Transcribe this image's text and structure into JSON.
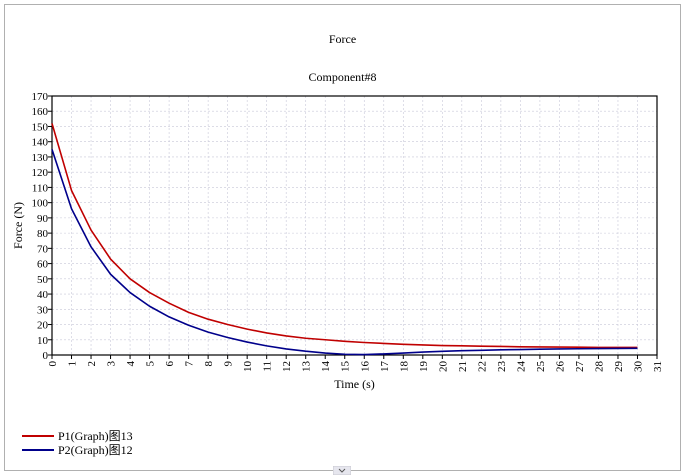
{
  "window": {
    "title": "Force",
    "subtitle": "Component#8"
  },
  "chart_data": {
    "type": "line",
    "title": "Force",
    "subtitle": "Component#8",
    "xlabel": "Time (s)",
    "ylabel": "Force (N)",
    "xlim": [
      0,
      31
    ],
    "ylim": [
      0,
      170
    ],
    "xticks": [
      0,
      1,
      2,
      3,
      4,
      5,
      6,
      7,
      8,
      9,
      10,
      11,
      12,
      13,
      14,
      15,
      16,
      17,
      18,
      19,
      20,
      21,
      22,
      23,
      24,
      25,
      26,
      27,
      28,
      29,
      30,
      31
    ],
    "yticks": [
      0,
      10,
      20,
      30,
      40,
      50,
      60,
      70,
      80,
      90,
      100,
      110,
      120,
      130,
      140,
      150,
      160,
      170
    ],
    "grid": true,
    "legend_position": "bottom-left",
    "x": [
      0,
      1,
      2,
      3,
      4,
      5,
      6,
      7,
      8,
      9,
      10,
      11,
      12,
      13,
      14,
      15,
      16,
      17,
      18,
      19,
      20,
      21,
      22,
      23,
      24,
      25,
      26,
      27,
      28,
      29,
      30
    ],
    "series": [
      {
        "name": "P1(Graph)图13",
        "color": "#c00000",
        "values": [
          152,
          108,
          82,
          63,
          50,
          41,
          34,
          28,
          23.5,
          20,
          17,
          14.5,
          12.5,
          11,
          10,
          9,
          8.2,
          7.6,
          7,
          6.6,
          6.2,
          6,
          5.8,
          5.6,
          5.4,
          5.3,
          5.2,
          5.1,
          5,
          5,
          5
        ]
      },
      {
        "name": "P2(Graph)图12",
        "color": "#00008b",
        "values": [
          135,
          96,
          71,
          53,
          41,
          32,
          25,
          19.5,
          15,
          11.5,
          8.5,
          6,
          4,
          2.5,
          1.3,
          0.5,
          0.3,
          0.7,
          1.3,
          1.9,
          2.4,
          2.8,
          3.1,
          3.4,
          3.6,
          3.8,
          4,
          4.1,
          4.2,
          4.3,
          4.4
        ]
      }
    ]
  },
  "legend": {
    "items": [
      {
        "label": "P1(Graph)图13",
        "color": "#c00000"
      },
      {
        "label": "P2(Graph)图12",
        "color": "#00008b"
      }
    ]
  }
}
